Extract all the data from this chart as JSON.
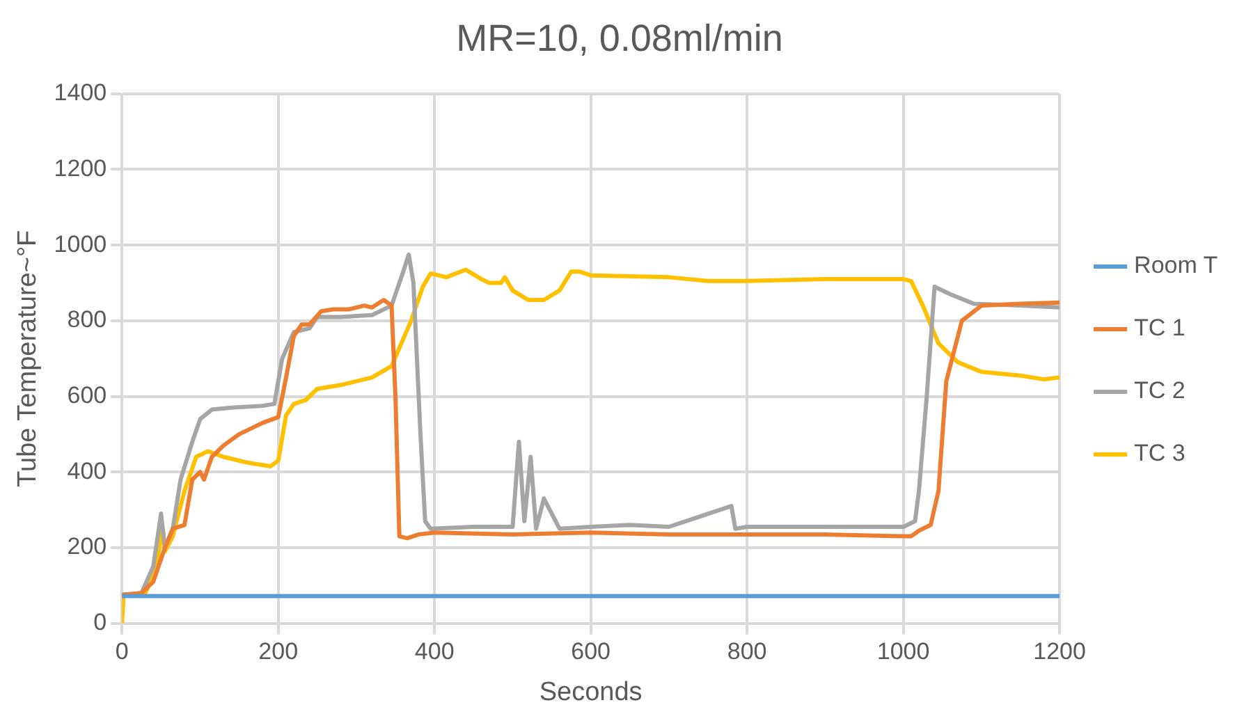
{
  "chart_data": {
    "type": "line",
    "title": "MR=10, 0.08ml/min",
    "xlabel": "Seconds",
    "ylabel": "Tube Temperature~°F",
    "xlim": [
      0,
      1200
    ],
    "xticks": [
      0,
      200,
      400,
      600,
      800,
      1000,
      1200
    ],
    "ylim": [
      0,
      1400
    ],
    "yticks": [
      0,
      200,
      400,
      600,
      800,
      1000,
      1200,
      1400
    ],
    "grid": true,
    "legend": "right",
    "marker": "none",
    "line_style": "solid",
    "series": [
      {
        "name": "Room T",
        "color": "#5b9bd5",
        "x": [
          0,
          600,
          1200
        ],
        "values": [
          72,
          72,
          72
        ]
      },
      {
        "name": "TC 1",
        "color": "#ed7d31",
        "x": [
          0,
          25,
          40,
          55,
          65,
          80,
          90,
          100,
          105,
          115,
          130,
          150,
          180,
          200,
          210,
          220,
          230,
          240,
          255,
          270,
          290,
          310,
          320,
          335,
          345,
          350,
          355,
          365,
          380,
          400,
          500,
          600,
          700,
          800,
          900,
          1000,
          1010,
          1020,
          1035,
          1045,
          1055,
          1075,
          1100,
          1150,
          1200
        ],
        "values": [
          75,
          80,
          110,
          200,
          250,
          260,
          380,
          400,
          380,
          440,
          470,
          500,
          530,
          545,
          650,
          760,
          790,
          790,
          825,
          830,
          830,
          840,
          835,
          855,
          840,
          600,
          230,
          225,
          235,
          240,
          235,
          240,
          235,
          235,
          235,
          230,
          230,
          245,
          260,
          350,
          640,
          800,
          840,
          845,
          848
        ]
      },
      {
        "name": "TC 2",
        "color": "#a5a5a5",
        "x": [
          0,
          25,
          40,
          50,
          55,
          65,
          75,
          90,
          100,
          115,
          140,
          180,
          195,
          205,
          220,
          240,
          250,
          280,
          320,
          345,
          360,
          367,
          373,
          382,
          388,
          395,
          450,
          500,
          508,
          515,
          523,
          530,
          540,
          560,
          600,
          650,
          700,
          780,
          785,
          800,
          900,
          1000,
          1015,
          1020,
          1030,
          1040,
          1060,
          1090,
          1150,
          1200
        ],
        "values": [
          75,
          80,
          150,
          290,
          200,
          250,
          380,
          480,
          540,
          565,
          570,
          575,
          580,
          700,
          770,
          780,
          810,
          810,
          815,
          840,
          930,
          975,
          900,
          500,
          270,
          250,
          255,
          255,
          480,
          270,
          440,
          250,
          330,
          250,
          255,
          260,
          255,
          310,
          250,
          255,
          255,
          255,
          270,
          350,
          600,
          890,
          870,
          845,
          840,
          835
        ]
      },
      {
        "name": "TC 3",
        "color": "#ffc000",
        "x": [
          0,
          2,
          30,
          45,
          50,
          55,
          65,
          80,
          95,
          110,
          130,
          160,
          190,
          200,
          210,
          220,
          235,
          250,
          280,
          320,
          345,
          370,
          385,
          395,
          405,
          415,
          440,
          460,
          470,
          485,
          490,
          500,
          520,
          540,
          560,
          575,
          585,
          600,
          700,
          750,
          800,
          900,
          950,
          1000,
          1010,
          1025,
          1045,
          1070,
          1100,
          1150,
          1180,
          1200
        ],
        "values": [
          0,
          75,
          80,
          150,
          250,
          190,
          230,
          350,
          440,
          455,
          440,
          425,
          415,
          430,
          550,
          580,
          590,
          620,
          630,
          650,
          680,
          800,
          890,
          925,
          920,
          915,
          935,
          910,
          900,
          900,
          915,
          880,
          855,
          855,
          880,
          930,
          930,
          920,
          915,
          905,
          905,
          910,
          910,
          910,
          905,
          840,
          740,
          690,
          665,
          655,
          645,
          650
        ]
      }
    ]
  }
}
